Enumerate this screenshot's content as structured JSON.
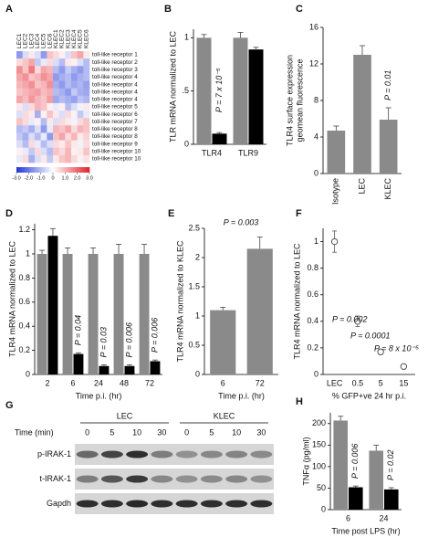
{
  "chart_data": [
    {
      "type": "heatmap",
      "panel": "A",
      "columns": [
        "LEC1",
        "LEC2",
        "LEC3",
        "LEC4",
        "LEC5",
        "LEC6",
        "KLEC1",
        "KLEC2",
        "KLEC3",
        "KLEC4",
        "KLEC5",
        "KLEC6"
      ],
      "rows": [
        "toll-like receptor 1",
        "toll-like receptor 2",
        "toll-like receptor 3",
        "toll-like receptor 4",
        "toll-like receptor 4",
        "toll-like receptor 4",
        "toll-like receptor 4",
        "toll-like receptor 5",
        "toll-like receptor 6",
        "toll-like receptor 7",
        "toll-like receptor 8",
        "toll-like receptor 8",
        "toll-like receptor 9",
        "toll-like receptor 10",
        "toll-like receptor 10"
      ],
      "values": [
        [
          -1.5,
          -0.5,
          0.3,
          -0.5,
          -1.5,
          0.8,
          0.5,
          0.2,
          -0.5,
          0.8,
          1.2,
          0.3
        ],
        [
          0.5,
          0.8,
          1.2,
          -0.8,
          -0.3,
          0.5,
          -0.5,
          -1,
          0.3,
          0.2,
          -0.5,
          -1
        ],
        [
          1.5,
          0.8,
          1.8,
          0.5,
          1.2,
          1,
          -1,
          -1.5,
          -0.8,
          -1.2,
          -1.5,
          -1
        ],
        [
          1.2,
          1.5,
          0.8,
          1,
          1.5,
          1.2,
          -1.5,
          -1.2,
          -1,
          -1.5,
          -1.2,
          -1
        ],
        [
          1,
          1.2,
          1.5,
          0.8,
          1,
          1.5,
          -1.2,
          -1.5,
          -1,
          -1.3,
          -1.1,
          -1.4
        ],
        [
          0.8,
          1,
          1.2,
          1.3,
          0.9,
          1.1,
          -1,
          -1.2,
          -1.5,
          -0.8,
          -1.2,
          -1.3
        ],
        [
          1.2,
          0.9,
          1.4,
          1,
          0.8,
          1.3,
          -1.3,
          -1,
          -1.2,
          -1.4,
          -0.9,
          -1.1
        ],
        [
          0.3,
          -0.5,
          0.5,
          1,
          0.8,
          0.2,
          -0.3,
          0.2,
          -1,
          -0.5,
          -0.2,
          0.3
        ],
        [
          -0.5,
          0.5,
          0.3,
          -1.2,
          0.2,
          0.8,
          0.3,
          -0.5,
          0.5,
          0.2,
          -0.8,
          -0.3
        ],
        [
          0.8,
          0.5,
          -0.3,
          0.2,
          -1,
          0.3,
          -0.5,
          0.5,
          0.3,
          -0.2,
          0.5,
          0.8
        ],
        [
          -1,
          -0.8,
          -1.2,
          -0.5,
          -1.5,
          -0.3,
          1,
          0.8,
          1.2,
          0.5,
          1,
          0.8
        ],
        [
          -0.8,
          -1.2,
          -0.5,
          -1,
          -0.3,
          -1.5,
          0.8,
          1.2,
          0.5,
          1,
          0.3,
          0.6
        ],
        [
          -0.5,
          -1,
          0.5,
          -0.3,
          -1,
          -0.5,
          0.5,
          0.3,
          0.8,
          0.3,
          -0.2,
          0.5
        ],
        [
          0.2,
          -0.3,
          -0.8,
          0.5,
          -0.5,
          -1,
          0.8,
          0.5,
          1,
          0.2,
          0.3,
          0.8
        ],
        [
          -0.3,
          0.5,
          -1.2,
          -0.5,
          0.3,
          -0.8,
          0.3,
          0.8,
          1,
          0.5,
          0.2,
          0.4
        ]
      ],
      "colorbar_lim": [
        -3,
        3
      ],
      "colorbar_ticks": [
        {
          "value": -3,
          "label": "-3.0"
        },
        {
          "value": -2,
          "label": "-2.0"
        },
        {
          "value": -1,
          "label": "-1.0"
        },
        0,
        {
          "value": 1,
          "label": "1.0"
        },
        {
          "value": 2,
          "label": "2.0"
        },
        {
          "value": 3,
          "label": "3.0"
        }
      ],
      "colors": [
        "#2136d8",
        "#ffffff",
        "#e3202a"
      ]
    },
    {
      "type": "bar",
      "panel": "B",
      "ylabel": "TLR mRNA normalized to LEC",
      "categories": [
        "TLR4",
        "TLR9"
      ],
      "series": [
        {
          "color": "#8a8a8a",
          "values": [
            1,
            1
          ],
          "errors": [
            0.03,
            0.05
          ]
        },
        {
          "color": "#000000",
          "values": [
            0.1,
            0.89
          ],
          "errors": [
            0.01,
            0.02
          ]
        }
      ],
      "ylim": [
        0,
        1.08
      ],
      "yticks": [
        0,
        {
          "value": 0.5,
          "label": ".5"
        },
        1
      ],
      "annotations": [
        "P = 7 x 10⁻⁵"
      ]
    },
    {
      "type": "bar",
      "panel": "C",
      "ylabel": [
        "TLR4 surface expression",
        "geomean fluorescence"
      ],
      "categories": [
        "Isotype",
        "LEC",
        "KLEC"
      ],
      "series": [
        {
          "color": "#8a8a8a",
          "values": [
            4.7,
            13,
            5.9
          ],
          "errors": [
            0.5,
            1,
            1.3
          ]
        }
      ],
      "ylim": [
        0,
        16
      ],
      "yticks": [
        0,
        4,
        8,
        12,
        16
      ],
      "annotations": [
        "P = 0.01"
      ]
    },
    {
      "type": "bar",
      "panel": "D",
      "ylabel": "TLR4 mRNA normalized to LEC",
      "xlabel": "Time p.i. (hr)",
      "categories": [
        "2",
        "6",
        "24",
        "48",
        "72"
      ],
      "series": [
        {
          "color": "#8a8a8a",
          "values": [
            1,
            1,
            1,
            1,
            1
          ],
          "errors": [
            0.03,
            0.05,
            0.05,
            0.08,
            0.08
          ]
        },
        {
          "color": "#000000",
          "values": [
            1.15,
            0.17,
            0.07,
            0.07,
            0.11
          ],
          "errors": [
            0.06,
            0.01,
            0.01,
            0.01,
            0.01
          ]
        }
      ],
      "ylim": [
        0,
        1.25
      ],
      "yticks": [
        0,
        0.2,
        0.4,
        0.6,
        0.8,
        1,
        1.2
      ],
      "annotations": [
        "P = 0.04",
        "P = 0.03",
        "P = 0.006",
        "P = 0.006"
      ]
    },
    {
      "type": "bar",
      "panel": "E",
      "ylabel": "TLR4 mRNA normalized to KLEC",
      "xlabel": "Time p.i. (hr)",
      "categories": [
        "6",
        "72"
      ],
      "series": [
        {
          "color": "#8a8a8a",
          "values": [
            1.1,
            2.15
          ],
          "errors": [
            0.05,
            0.2
          ]
        }
      ],
      "ylim": [
        0,
        2.5
      ],
      "yticks": [
        0,
        0.5,
        1,
        1.5,
        2,
        2.5
      ],
      "annotations": [
        "P = 0.003"
      ]
    },
    {
      "type": "scatter",
      "panel": "F",
      "ylabel": "TLR4 mRNA normalized to LEC",
      "xlabel": "% GFP+ve 24 hr p.i.",
      "categories": [
        "LEC",
        "0.5",
        "5",
        "15"
      ],
      "series": [
        {
          "color": "#555555",
          "values": [
            1,
            0.4,
            0.17,
            0.06
          ],
          "errors": [
            0.08,
            0.04,
            0.02,
            0.01
          ]
        }
      ],
      "ylim": [
        0,
        1.1
      ],
      "yticks": [
        0,
        0.2,
        0.4,
        0.6,
        0.8,
        1
      ],
      "annotations": [
        "P = 0.002",
        "P = 0.0001",
        "P = 8 x 10⁻⁵"
      ]
    },
    {
      "type": "bar",
      "panel": "H",
      "ylabel": "TNFα (pg/ml)",
      "xlabel": "Time post LPS (hr)",
      "categories": [
        "6",
        "24"
      ],
      "series": [
        {
          "color": "#8a8a8a",
          "values": [
            207,
            137
          ],
          "errors": [
            10,
            13
          ]
        },
        {
          "color": "#000000",
          "values": [
            52,
            47
          ],
          "errors": [
            3,
            4
          ]
        }
      ],
      "ylim": [
        0,
        225
      ],
      "yticks": [
        0,
        50,
        100,
        150,
        200
      ],
      "annotations": [
        "P = 0.006",
        "P = 0.02"
      ]
    }
  ],
  "blot": {
    "panel": "G",
    "time_label": "Time (min)",
    "groups": [
      "LEC",
      "KLEC"
    ],
    "times": [
      0,
      5,
      10,
      30,
      0,
      5,
      10,
      30
    ],
    "rows": [
      "p-IRAK-1",
      "t-IRAK-1",
      "Gapdh"
    ]
  }
}
